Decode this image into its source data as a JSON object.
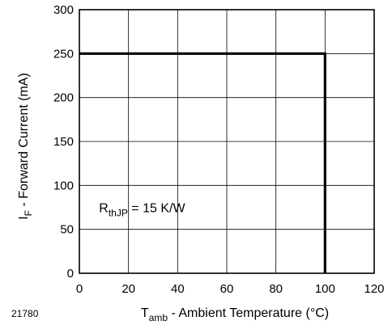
{
  "chart_data": {
    "type": "line",
    "xlabel": {
      "main": "T",
      "sub": "amb",
      "rest": " - Ambient Temperature (°C)"
    },
    "ylabel": {
      "main": "I",
      "sub": "F",
      "rest": " - Forward Current (mA)"
    },
    "xlim": [
      0,
      120
    ],
    "ylim": [
      0,
      300
    ],
    "xticks": [
      0,
      20,
      40,
      60,
      80,
      100,
      120
    ],
    "yticks": [
      0,
      50,
      100,
      150,
      200,
      250,
      300
    ],
    "grid": true,
    "series": [
      {
        "x": [
          0,
          100,
          100
        ],
        "y": [
          250,
          250,
          0
        ]
      }
    ],
    "annotation": {
      "main": "R",
      "sub": "thJP",
      "rest": " = 15 K/W",
      "x": 8,
      "y": 75
    },
    "figure_number": "21780"
  }
}
